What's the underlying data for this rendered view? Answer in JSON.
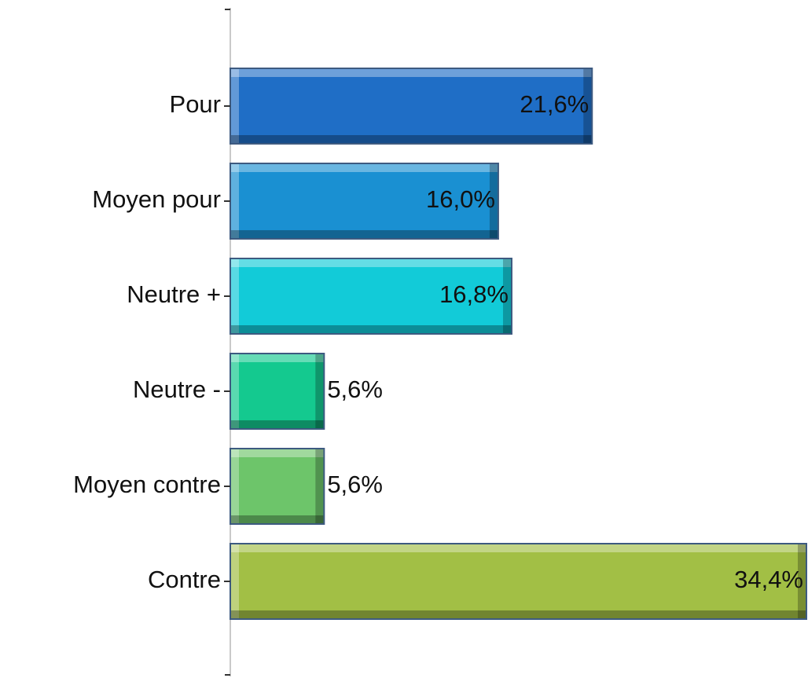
{
  "chart_data": {
    "type": "hbar",
    "categories": [
      "Pour",
      "Moyen pour",
      "Neutre +",
      "Neutre -",
      "Moyen contre",
      "Contre"
    ],
    "values": [
      21.6,
      16.0,
      16.8,
      5.6,
      5.6,
      34.4
    ],
    "value_labels": [
      "21,6%",
      "16,0%",
      "16,8%",
      "5,6%",
      "5,6%",
      "34,4%"
    ],
    "colors": [
      "#1f6ec6",
      "#1a90d2",
      "#12cbd8",
      "#14c98f",
      "#6dc56a",
      "#a2bf45"
    ]
  }
}
